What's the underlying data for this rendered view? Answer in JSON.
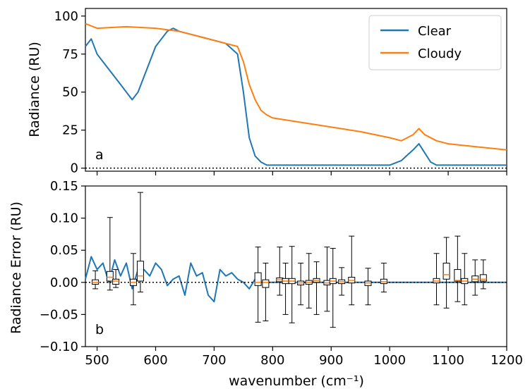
{
  "chart_data": [
    {
      "panel_letter": "a",
      "type": "line",
      "ylabel": "Radiance (RU)",
      "xlim": [
        480,
        1200
      ],
      "ylim": [
        -2,
        105
      ],
      "yticks": [
        0,
        25,
        50,
        75,
        100
      ],
      "grid": false,
      "legend_position": "top-right",
      "reference_line": {
        "y": 0,
        "style": "dotted"
      },
      "series": [
        {
          "name": "Clear",
          "color": "#1f77b4",
          "x": [
            480,
            490,
            500,
            510,
            520,
            530,
            540,
            550,
            560,
            570,
            580,
            590,
            600,
            610,
            620,
            630,
            640,
            660,
            680,
            700,
            720,
            740,
            750,
            760,
            770,
            780,
            790,
            800,
            850,
            900,
            950,
            1000,
            1020,
            1040,
            1050,
            1060,
            1070,
            1080,
            1100,
            1150,
            1200
          ],
          "y": [
            80,
            85,
            75,
            70,
            65,
            60,
            55,
            50,
            45,
            50,
            60,
            70,
            80,
            85,
            90,
            92,
            90,
            88,
            86,
            84,
            82,
            75,
            50,
            20,
            8,
            4,
            2,
            2,
            2,
            2,
            2,
            2,
            5,
            12,
            16,
            10,
            4,
            2,
            2,
            2,
            2
          ]
        },
        {
          "name": "Cloudy",
          "color": "#ff7f0e",
          "x": [
            480,
            500,
            550,
            600,
            620,
            640,
            660,
            680,
            700,
            720,
            740,
            750,
            760,
            770,
            780,
            790,
            800,
            850,
            900,
            950,
            1000,
            1020,
            1040,
            1050,
            1060,
            1080,
            1100,
            1150,
            1200
          ],
          "y": [
            95,
            92,
            93,
            92,
            91,
            90,
            88,
            86,
            84,
            82,
            80,
            70,
            55,
            45,
            38,
            35,
            33,
            30,
            27,
            24,
            20,
            18,
            22,
            26,
            22,
            18,
            16,
            14,
            12
          ]
        }
      ]
    },
    {
      "panel_letter": "b",
      "type": "line",
      "xlabel": "wavenumber (cm⁻¹)",
      "ylabel": "Radiance Error (RU)",
      "xlim": [
        480,
        1200
      ],
      "ylim": [
        -0.1,
        0.15
      ],
      "xticks": [
        500,
        600,
        700,
        800,
        900,
        1000,
        1100,
        1200
      ],
      "yticks": [
        -0.1,
        -0.05,
        0.0,
        0.05,
        0.1,
        0.15
      ],
      "grid": false,
      "reference_line": {
        "y": 0,
        "style": "dotted"
      },
      "series": [
        {
          "color": "#1f77b4",
          "x": [
            480,
            490,
            500,
            510,
            520,
            530,
            540,
            550,
            560,
            570,
            580,
            590,
            600,
            610,
            620,
            630,
            640,
            650,
            660,
            670,
            680,
            690,
            700,
            710,
            720,
            730,
            740,
            750,
            760,
            770,
            780,
            790,
            800,
            850,
            900,
            950,
            1000,
            1050,
            1100,
            1150,
            1200
          ],
          "y": [
            0.005,
            0.04,
            0.02,
            0.03,
            0.0,
            0.035,
            0.01,
            0.03,
            -0.01,
            0.02,
            0.02,
            0.01,
            0.03,
            0.02,
            -0.005,
            0.005,
            0.01,
            -0.02,
            0.03,
            0.01,
            0.015,
            -0.02,
            -0.03,
            0.02,
            0.01,
            0.015,
            0.005,
            0.0,
            -0.01,
            0.005,
            0.0,
            0.0,
            0.0,
            0.0,
            0.0,
            0.0,
            0.0,
            0.0,
            0.0,
            0.0,
            0.0
          ]
        }
      ],
      "boxplots": [
        {
          "x": 497,
          "q1": -0.003,
          "med": 0.0,
          "q3": 0.004,
          "lo": -0.01,
          "hi": 0.018
        },
        {
          "x": 522,
          "q1": 0.002,
          "med": 0.008,
          "q3": 0.017,
          "lo": -0.012,
          "hi": 0.101
        },
        {
          "x": 532,
          "q1": -0.003,
          "med": 0.002,
          "q3": 0.005,
          "lo": -0.008,
          "hi": 0.02
        },
        {
          "x": 562,
          "q1": -0.005,
          "med": 0.0,
          "q3": 0.005,
          "lo": -0.035,
          "hi": 0.045
        },
        {
          "x": 574,
          "q1": 0.002,
          "med": 0.01,
          "q3": 0.033,
          "lo": -0.015,
          "hi": 0.14
        },
        {
          "x": 775,
          "q1": -0.005,
          "med": 0.0,
          "q3": 0.015,
          "lo": -0.062,
          "hi": 0.055
        },
        {
          "x": 788,
          "q1": -0.008,
          "med": 0.0,
          "q3": 0.004,
          "lo": -0.06,
          "hi": 0.03
        },
        {
          "x": 812,
          "q1": 0.001,
          "med": 0.004,
          "q3": 0.007,
          "lo": -0.02,
          "hi": 0.055
        },
        {
          "x": 822,
          "q1": -0.002,
          "med": 0.002,
          "q3": 0.006,
          "lo": -0.05,
          "hi": 0.03
        },
        {
          "x": 833,
          "q1": -0.002,
          "med": 0.002,
          "q3": 0.006,
          "lo": -0.063,
          "hi": 0.056
        },
        {
          "x": 848,
          "q1": -0.004,
          "med": -0.001,
          "q3": 0.002,
          "lo": -0.035,
          "hi": 0.03
        },
        {
          "x": 862,
          "q1": -0.003,
          "med": 0.0,
          "q3": 0.003,
          "lo": -0.04,
          "hi": 0.045
        },
        {
          "x": 875,
          "q1": 0.0,
          "med": 0.003,
          "q3": 0.006,
          "lo": -0.05,
          "hi": 0.032
        },
        {
          "x": 893,
          "q1": -0.004,
          "med": -0.001,
          "q3": 0.003,
          "lo": -0.045,
          "hi": 0.055
        },
        {
          "x": 903,
          "q1": -0.002,
          "med": 0.002,
          "q3": 0.006,
          "lo": -0.07,
          "hi": 0.053
        },
        {
          "x": 918,
          "q1": -0.002,
          "med": 0.001,
          "q3": 0.004,
          "lo": -0.02,
          "hi": 0.023
        },
        {
          "x": 935,
          "q1": -0.001,
          "med": 0.003,
          "q3": 0.008,
          "lo": -0.035,
          "hi": 0.072
        },
        {
          "x": 963,
          "q1": -0.005,
          "med": -0.001,
          "q3": 0.002,
          "lo": -0.035,
          "hi": 0.022
        },
        {
          "x": 990,
          "q1": -0.002,
          "med": 0.001,
          "q3": 0.005,
          "lo": -0.015,
          "hi": 0.03
        },
        {
          "x": 1080,
          "q1": -0.001,
          "med": 0.002,
          "q3": 0.006,
          "lo": -0.035,
          "hi": 0.045
        },
        {
          "x": 1097,
          "q1": 0.005,
          "med": 0.012,
          "q3": 0.03,
          "lo": -0.04,
          "hi": 0.07
        },
        {
          "x": 1116,
          "q1": 0.002,
          "med": 0.003,
          "q3": 0.02,
          "lo": -0.03,
          "hi": 0.072
        },
        {
          "x": 1128,
          "q1": -0.002,
          "med": 0.002,
          "q3": 0.006,
          "lo": -0.035,
          "hi": 0.045
        },
        {
          "x": 1146,
          "q1": 0.001,
          "med": 0.005,
          "q3": 0.01,
          "lo": -0.02,
          "hi": 0.035
        },
        {
          "x": 1160,
          "q1": 0.002,
          "med": 0.005,
          "q3": 0.012,
          "lo": -0.01,
          "hi": 0.035
        }
      ],
      "box_median_color": "#ff7f0e"
    }
  ]
}
